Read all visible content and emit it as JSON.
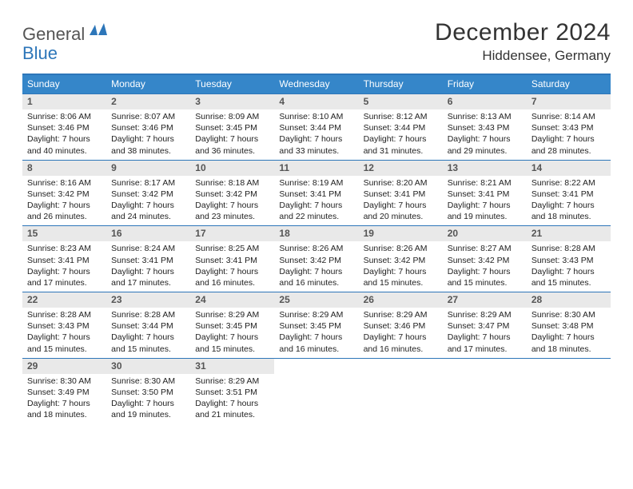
{
  "logo": {
    "part1": "General",
    "part2": "Blue",
    "shape_color": "#2d76b9"
  },
  "colors": {
    "header_bg": "#3586c9",
    "header_text": "#ffffff",
    "border": "#2d76b9",
    "daynum_bg": "#e9e9e9",
    "daynum_text": "#555555",
    "body_text": "#222222"
  },
  "title": "December 2024",
  "subtitle": "Hiddensee, Germany",
  "layout": {
    "columns": 7,
    "rows": 5
  },
  "weekdays": [
    "Sunday",
    "Monday",
    "Tuesday",
    "Wednesday",
    "Thursday",
    "Friday",
    "Saturday"
  ],
  "days": [
    {
      "n": "1",
      "sunrise": "8:06 AM",
      "sunset": "3:46 PM",
      "daylight": "7 hours and 40 minutes."
    },
    {
      "n": "2",
      "sunrise": "8:07 AM",
      "sunset": "3:46 PM",
      "daylight": "7 hours and 38 minutes."
    },
    {
      "n": "3",
      "sunrise": "8:09 AM",
      "sunset": "3:45 PM",
      "daylight": "7 hours and 36 minutes."
    },
    {
      "n": "4",
      "sunrise": "8:10 AM",
      "sunset": "3:44 PM",
      "daylight": "7 hours and 33 minutes."
    },
    {
      "n": "5",
      "sunrise": "8:12 AM",
      "sunset": "3:44 PM",
      "daylight": "7 hours and 31 minutes."
    },
    {
      "n": "6",
      "sunrise": "8:13 AM",
      "sunset": "3:43 PM",
      "daylight": "7 hours and 29 minutes."
    },
    {
      "n": "7",
      "sunrise": "8:14 AM",
      "sunset": "3:43 PM",
      "daylight": "7 hours and 28 minutes."
    },
    {
      "n": "8",
      "sunrise": "8:16 AM",
      "sunset": "3:42 PM",
      "daylight": "7 hours and 26 minutes."
    },
    {
      "n": "9",
      "sunrise": "8:17 AM",
      "sunset": "3:42 PM",
      "daylight": "7 hours and 24 minutes."
    },
    {
      "n": "10",
      "sunrise": "8:18 AM",
      "sunset": "3:42 PM",
      "daylight": "7 hours and 23 minutes."
    },
    {
      "n": "11",
      "sunrise": "8:19 AM",
      "sunset": "3:41 PM",
      "daylight": "7 hours and 22 minutes."
    },
    {
      "n": "12",
      "sunrise": "8:20 AM",
      "sunset": "3:41 PM",
      "daylight": "7 hours and 20 minutes."
    },
    {
      "n": "13",
      "sunrise": "8:21 AM",
      "sunset": "3:41 PM",
      "daylight": "7 hours and 19 minutes."
    },
    {
      "n": "14",
      "sunrise": "8:22 AM",
      "sunset": "3:41 PM",
      "daylight": "7 hours and 18 minutes."
    },
    {
      "n": "15",
      "sunrise": "8:23 AM",
      "sunset": "3:41 PM",
      "daylight": "7 hours and 17 minutes."
    },
    {
      "n": "16",
      "sunrise": "8:24 AM",
      "sunset": "3:41 PM",
      "daylight": "7 hours and 17 minutes."
    },
    {
      "n": "17",
      "sunrise": "8:25 AM",
      "sunset": "3:41 PM",
      "daylight": "7 hours and 16 minutes."
    },
    {
      "n": "18",
      "sunrise": "8:26 AM",
      "sunset": "3:42 PM",
      "daylight": "7 hours and 16 minutes."
    },
    {
      "n": "19",
      "sunrise": "8:26 AM",
      "sunset": "3:42 PM",
      "daylight": "7 hours and 15 minutes."
    },
    {
      "n": "20",
      "sunrise": "8:27 AM",
      "sunset": "3:42 PM",
      "daylight": "7 hours and 15 minutes."
    },
    {
      "n": "21",
      "sunrise": "8:28 AM",
      "sunset": "3:43 PM",
      "daylight": "7 hours and 15 minutes."
    },
    {
      "n": "22",
      "sunrise": "8:28 AM",
      "sunset": "3:43 PM",
      "daylight": "7 hours and 15 minutes."
    },
    {
      "n": "23",
      "sunrise": "8:28 AM",
      "sunset": "3:44 PM",
      "daylight": "7 hours and 15 minutes."
    },
    {
      "n": "24",
      "sunrise": "8:29 AM",
      "sunset": "3:45 PM",
      "daylight": "7 hours and 15 minutes."
    },
    {
      "n": "25",
      "sunrise": "8:29 AM",
      "sunset": "3:45 PM",
      "daylight": "7 hours and 16 minutes."
    },
    {
      "n": "26",
      "sunrise": "8:29 AM",
      "sunset": "3:46 PM",
      "daylight": "7 hours and 16 minutes."
    },
    {
      "n": "27",
      "sunrise": "8:29 AM",
      "sunset": "3:47 PM",
      "daylight": "7 hours and 17 minutes."
    },
    {
      "n": "28",
      "sunrise": "8:30 AM",
      "sunset": "3:48 PM",
      "daylight": "7 hours and 18 minutes."
    },
    {
      "n": "29",
      "sunrise": "8:30 AM",
      "sunset": "3:49 PM",
      "daylight": "7 hours and 18 minutes."
    },
    {
      "n": "30",
      "sunrise": "8:30 AM",
      "sunset": "3:50 PM",
      "daylight": "7 hours and 19 minutes."
    },
    {
      "n": "31",
      "sunrise": "8:29 AM",
      "sunset": "3:51 PM",
      "daylight": "7 hours and 21 minutes."
    }
  ],
  "labels": {
    "sunrise": "Sunrise: ",
    "sunset": "Sunset: ",
    "daylight": "Daylight: "
  }
}
